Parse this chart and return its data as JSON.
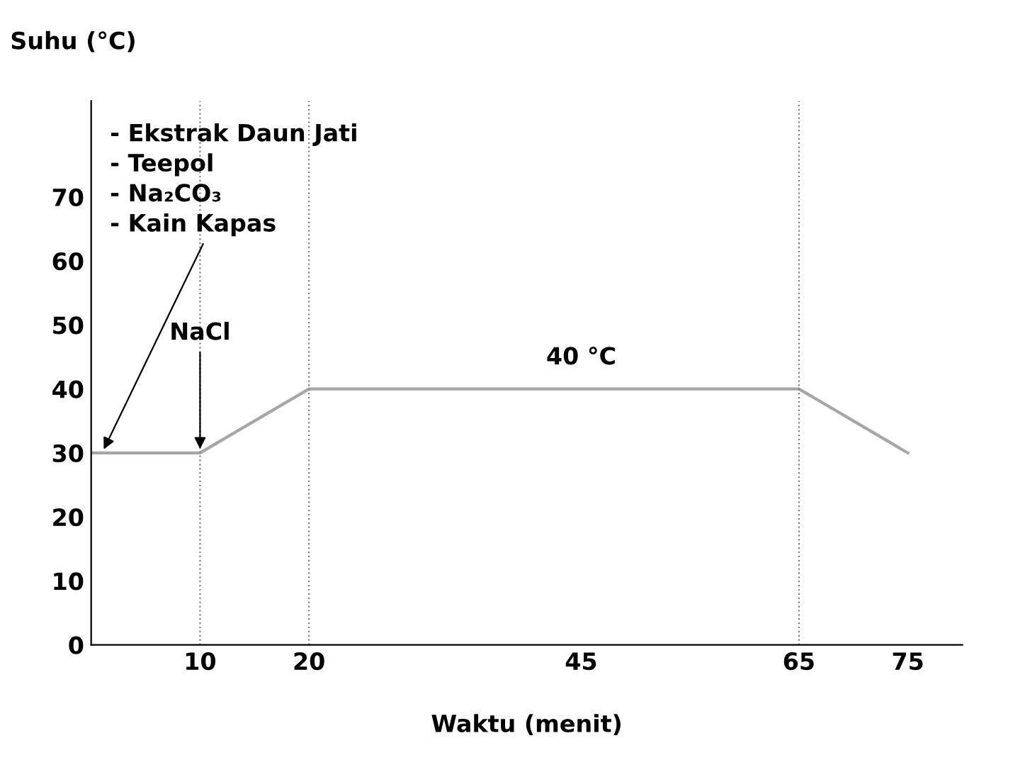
{
  "chart_data": {
    "type": "line",
    "xlabel": "Waktu (menit)",
    "ylabel": "Suhu (°C)",
    "x": [
      0,
      10,
      20,
      65,
      75
    ],
    "series": [
      {
        "color": "#a6a6a6",
        "values": [
          30,
          30,
          40,
          40,
          30
        ]
      }
    ],
    "xlim": [
      0,
      80
    ],
    "ylim": [
      0,
      85
    ],
    "xticks": [
      10,
      20,
      45,
      65,
      75
    ],
    "yticks": [
      0,
      10,
      20,
      30,
      40,
      50,
      60,
      70
    ],
    "grid": false,
    "legend": false,
    "marker": "none",
    "line_style": "solid",
    "ref_lines": [
      {
        "axis": "x",
        "value": 10,
        "color": "#808080",
        "line_style": "dotted"
      },
      {
        "axis": "x",
        "value": 20,
        "color": "#808080",
        "line_style": "dotted"
      },
      {
        "axis": "x",
        "value": 65,
        "color": "#808080",
        "line_style": "dotted"
      }
    ],
    "annotations": [
      {
        "text": "- Ekstrak Daun Jati\n- Teepol\n- Na₂CO₃\n- Kain Kapas",
        "x": 1,
        "y": 30
      },
      {
        "text": "NaCl",
        "x": 10,
        "y": 30
      },
      {
        "text": "40 °C",
        "x": 45,
        "y": 40
      }
    ]
  }
}
